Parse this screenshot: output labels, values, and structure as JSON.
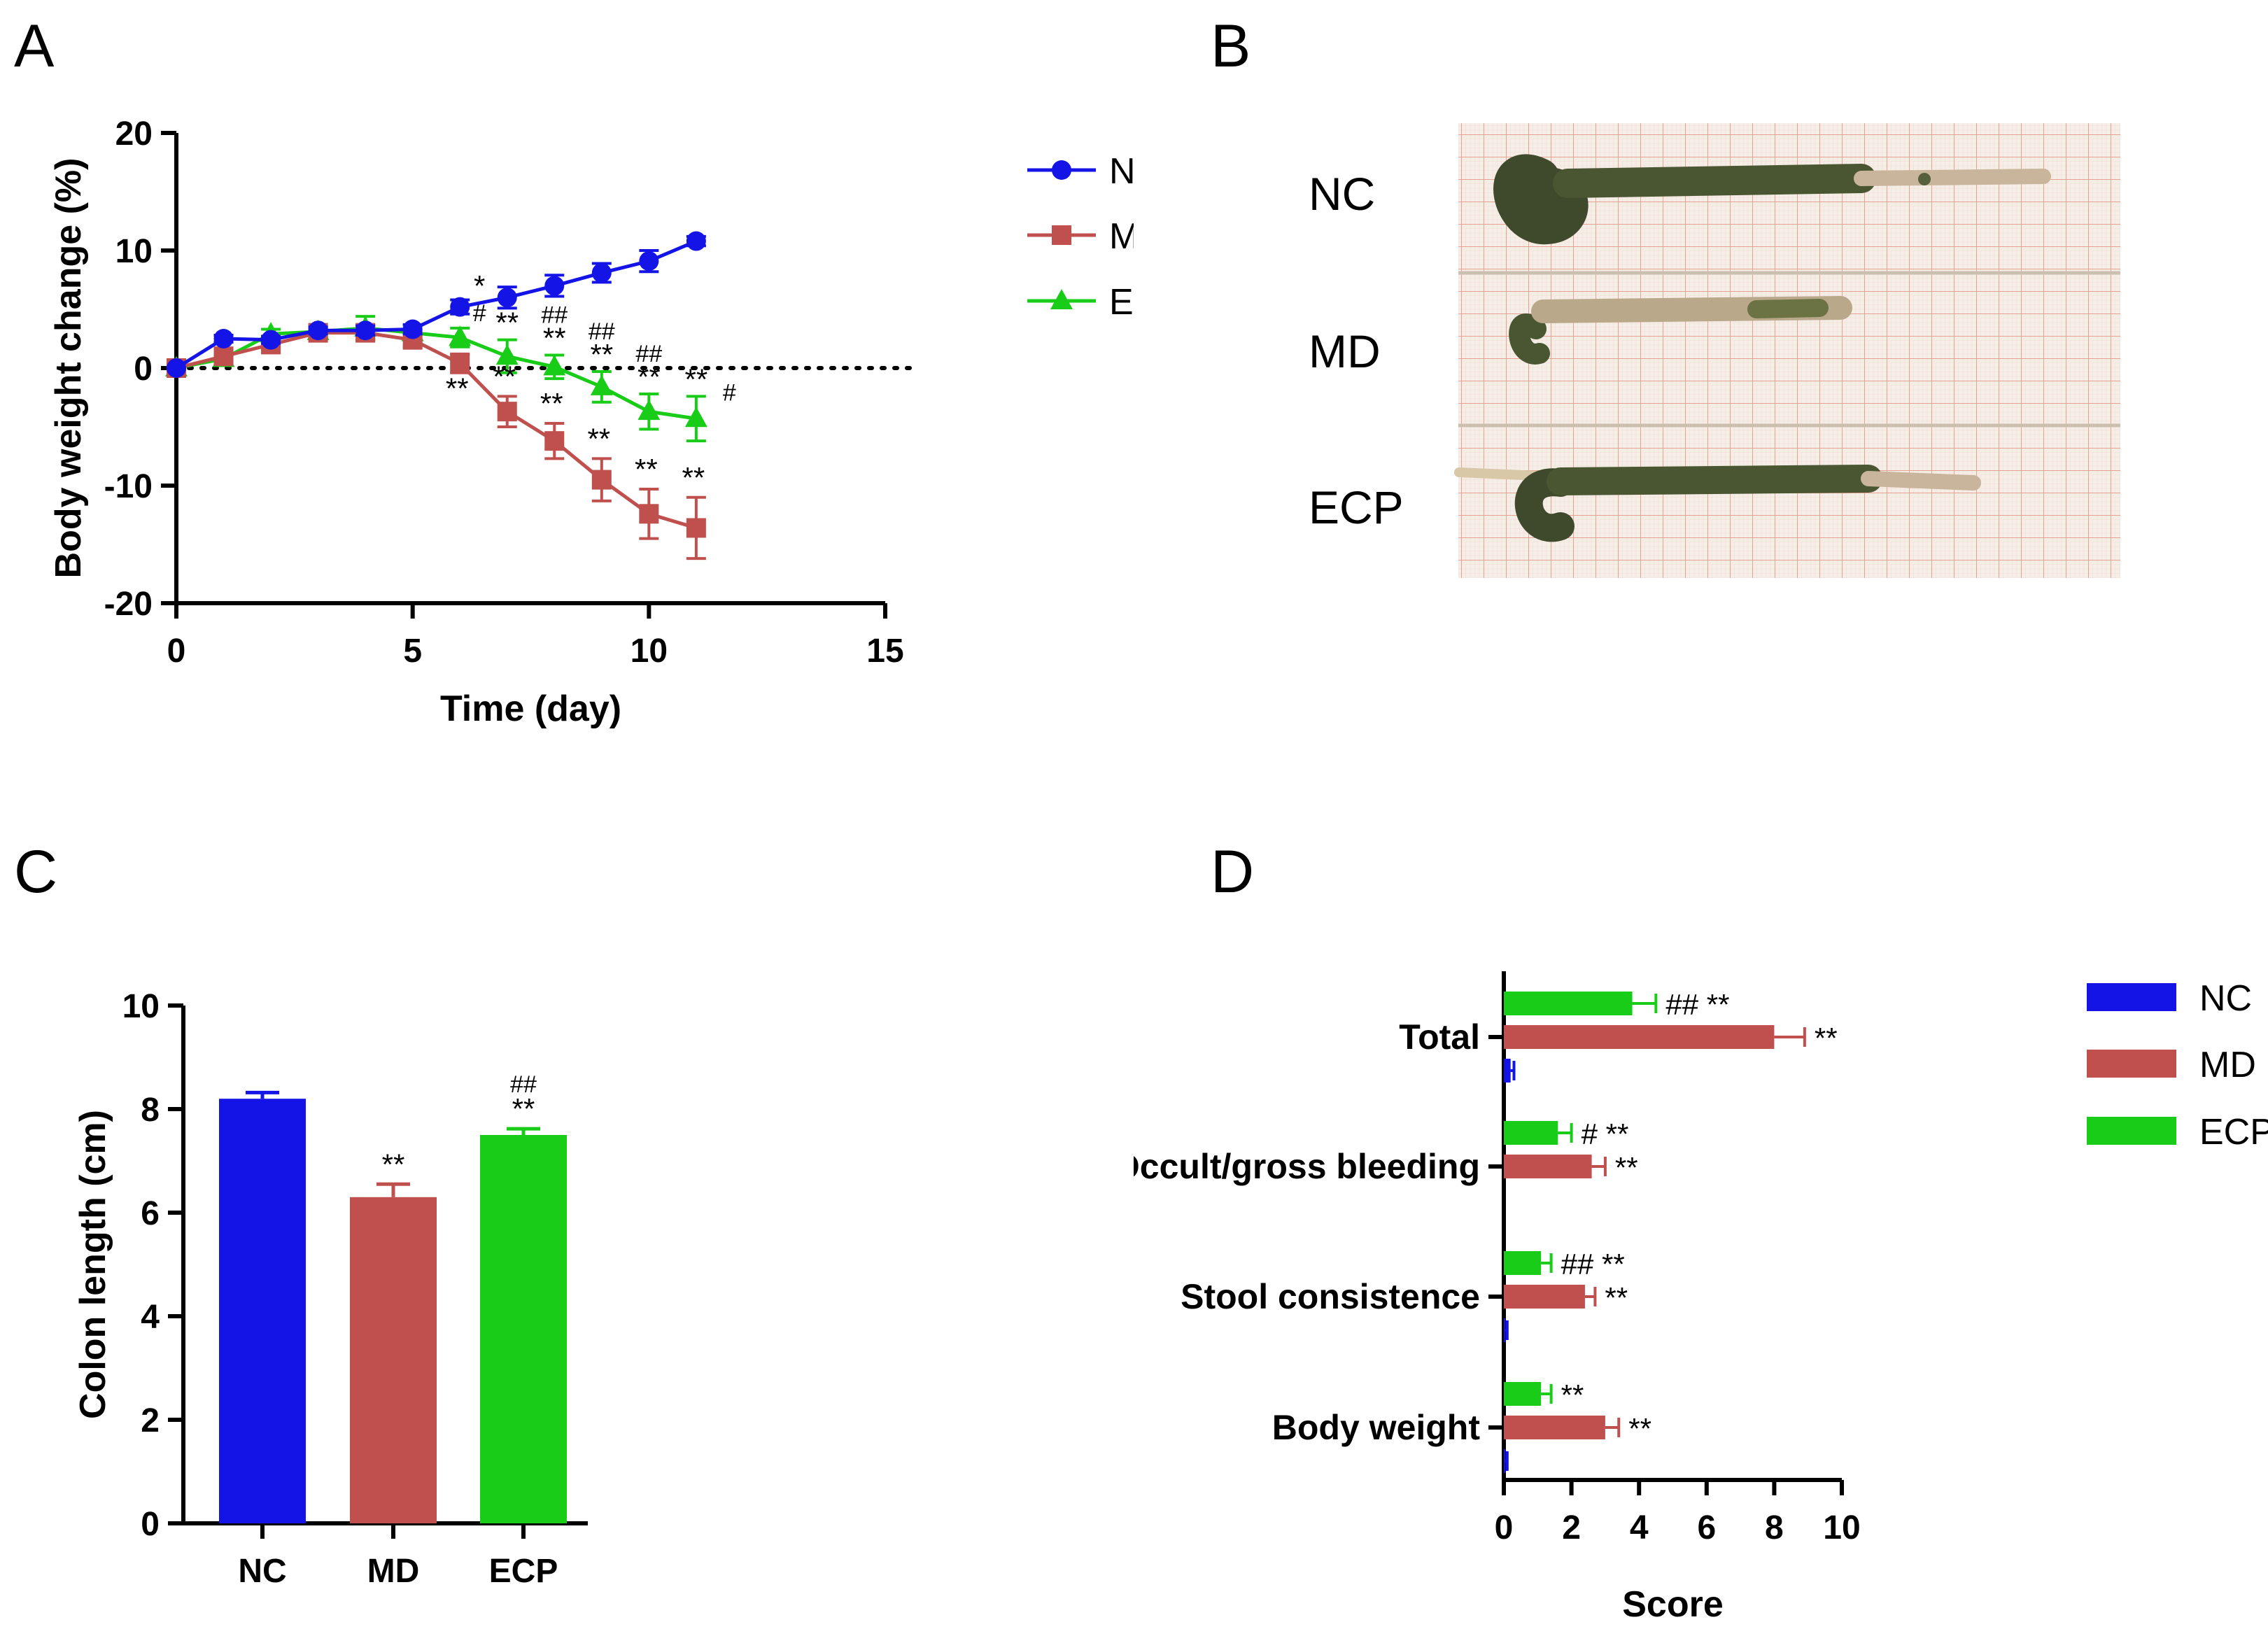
{
  "panel_labels": {
    "a": "A",
    "b": "B",
    "c": "C",
    "d": "D"
  },
  "colors": {
    "NC": "#1414e6",
    "MD": "#c0504d",
    "ECP": "#18cc18"
  },
  "chart_data": [
    {
      "id": "A",
      "type": "line",
      "xlabel": "Time (day)",
      "ylabel": "Body weight change (%)",
      "xlim": [
        0,
        15
      ],
      "ylim": [
        -20,
        20
      ],
      "xticks": [
        0,
        5,
        10,
        15
      ],
      "yticks": [
        -20,
        -10,
        0,
        10,
        20
      ],
      "reference_line": 0,
      "series": [
        {
          "name": "NC",
          "marker": "circle",
          "x": [
            0,
            1,
            2,
            3,
            4,
            5,
            6,
            7,
            8,
            9,
            10,
            11
          ],
          "values": [
            0,
            2.5,
            2.4,
            3.2,
            3.2,
            3.3,
            5.2,
            6.0,
            7.0,
            8.1,
            9.1,
            10.8
          ],
          "err": [
            0,
            0.3,
            0.3,
            0.3,
            0.4,
            0.4,
            0.6,
            0.9,
            0.9,
            0.8,
            0.9,
            0.4
          ]
        },
        {
          "name": "MD",
          "marker": "square",
          "x": [
            0,
            1,
            2,
            3,
            4,
            5,
            6,
            7,
            8,
            9,
            10,
            11
          ],
          "values": [
            0,
            1.0,
            2.0,
            3.0,
            3.0,
            2.4,
            0.4,
            -3.7,
            -6.2,
            -9.5,
            -12.4,
            -13.6
          ],
          "err": [
            0,
            0.3,
            0.3,
            0.3,
            0.6,
            0.6,
            0.8,
            1.3,
            1.5,
            1.8,
            2.1,
            2.6
          ]
        },
        {
          "name": "ECP",
          "marker": "triangle",
          "x": [
            0,
            1,
            2,
            3,
            4,
            5,
            6,
            7,
            8,
            9,
            10,
            11
          ],
          "values": [
            0,
            0.8,
            2.9,
            3.1,
            3.4,
            3.0,
            2.6,
            1.0,
            0.1,
            -1.6,
            -3.7,
            -4.3
          ],
          "err": [
            0,
            0.3,
            0.4,
            0.4,
            1.0,
            0.6,
            0.8,
            1.4,
            1.0,
            1.3,
            1.5,
            1.9
          ]
        }
      ],
      "annotations": [
        {
          "x": 6,
          "text": "**",
          "series": "MD"
        },
        {
          "x": 7,
          "text": "**",
          "series": "MD"
        },
        {
          "x": 8,
          "text": "**",
          "series": "MD"
        },
        {
          "x": 9,
          "text": "**",
          "series": "MD"
        },
        {
          "x": 10,
          "text": "**",
          "series": "MD"
        },
        {
          "x": 11,
          "text": "**",
          "series": "MD"
        },
        {
          "x": 6,
          "lines": [
            "*",
            "#"
          ],
          "series": "ECP"
        },
        {
          "x": 7,
          "lines": [
            "**"
          ],
          "series": "ECP"
        },
        {
          "x": 8,
          "lines": [
            "##",
            "**"
          ],
          "series": "ECP"
        },
        {
          "x": 9,
          "lines": [
            "##",
            "**"
          ],
          "series": "ECP"
        },
        {
          "x": 10,
          "lines": [
            "##",
            "**"
          ],
          "series": "ECP"
        },
        {
          "x": 11,
          "lines": [
            "**"
          ],
          "series": "ECP",
          "side": "#"
        }
      ],
      "legend": {
        "placement": "right",
        "entries": [
          "NC",
          "MD",
          "ECP"
        ]
      }
    },
    {
      "id": "C",
      "type": "bar",
      "categories": [
        "NC",
        "MD",
        "ECP"
      ],
      "values": [
        8.2,
        6.3,
        7.5
      ],
      "err": [
        0.12,
        0.25,
        0.12
      ],
      "ylabel": "Colon length (cm)",
      "ylim": [
        0,
        10
      ],
      "yticks": [
        0,
        2,
        4,
        6,
        8,
        10
      ],
      "annotations": [
        {
          "category": "MD",
          "lines": [
            "**"
          ]
        },
        {
          "category": "ECP",
          "lines": [
            "##",
            "**"
          ]
        }
      ]
    },
    {
      "id": "D",
      "type": "bar",
      "orientation": "horizontal",
      "categories": [
        "Total",
        "Occult/gross bleeding",
        "Stool consistence",
        "Body weight"
      ],
      "series": [
        {
          "name": "ECP",
          "values": [
            3.8,
            1.6,
            1.1,
            1.1
          ],
          "err": [
            0.7,
            0.4,
            0.3,
            0.3
          ],
          "annotations": [
            "## **",
            "# **",
            "## **",
            "**"
          ]
        },
        {
          "name": "MD",
          "values": [
            8.0,
            2.6,
            2.4,
            3.0
          ],
          "err": [
            0.9,
            0.4,
            0.3,
            0.4
          ],
          "annotations": [
            "**",
            "**",
            "**",
            "**"
          ]
        },
        {
          "name": "NC",
          "values": [
            0.2,
            0.0,
            0.05,
            0.05
          ],
          "err": [
            0.1,
            0.0,
            0.05,
            0.05
          ],
          "annotations": [
            "",
            "",
            "",
            ""
          ]
        }
      ],
      "xlabel": "Score",
      "xlim": [
        0,
        10
      ],
      "xticks": [
        0,
        2,
        4,
        6,
        8,
        10
      ],
      "legend": {
        "placement": "right",
        "entries": [
          "NC",
          "MD",
          "ECP"
        ]
      }
    }
  ],
  "photo": {
    "labels": [
      "NC",
      "MD",
      "ECP"
    ]
  }
}
